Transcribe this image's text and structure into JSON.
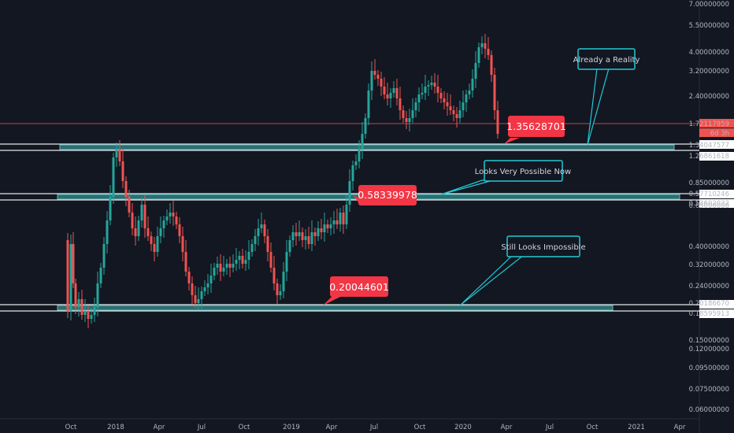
{
  "colors": {
    "background": "#131722",
    "up": "#26a69a",
    "down": "#ef5350",
    "band": "#5fb9b8",
    "band_fill": "#2b6e74",
    "callout": "#22c8d4",
    "red_label": "#f23645",
    "current_price_line": "#ef5350",
    "axis_text": "#b2b5be"
  },
  "chart_data": {
    "type": "candlestick",
    "scale": "log",
    "y_ticks": [
      "7.00000000",
      "5.50000000",
      "4.00000000",
      "3.20000000",
      "2.40000000",
      "1.72117959",
      "6d 3h",
      "1.34047577",
      "1.26861618",
      "0.85000000",
      "0.65000000",
      "0.57710246",
      "0.53602032",
      "0.40000000",
      "0.32000000",
      "0.24000000",
      "0.20186670",
      "0.18595913",
      "0.15000000",
      "0.12000000",
      "0.09500000",
      "0.07500000",
      "0.06000000"
    ],
    "x_ticks": [
      "Oct",
      "2018",
      "Apr",
      "Jul",
      "Oct",
      "2019",
      "Apr",
      "Jul",
      "Oct",
      "2020",
      "Apr",
      "Jul",
      "Oct",
      "2021",
      "Apr"
    ],
    "current_price": "1.72117959",
    "countdown": "6d 3h",
    "zones": [
      {
        "name": "top-zone",
        "top": "1.34047577",
        "bottom": "1.26861618"
      },
      {
        "name": "middle-zone",
        "top": "0.57710246",
        "bottom": "0.53602032"
      },
      {
        "name": "bottom-zone",
        "top": "0.20186670",
        "bottom": "0.18595913"
      }
    ],
    "price_labels": [
      "1.35628701",
      "0.58339978",
      "0.20044601"
    ],
    "callouts": [
      "Already a Reality",
      "Looks Very Possible Now",
      "Still Looks Impossible"
    ]
  }
}
